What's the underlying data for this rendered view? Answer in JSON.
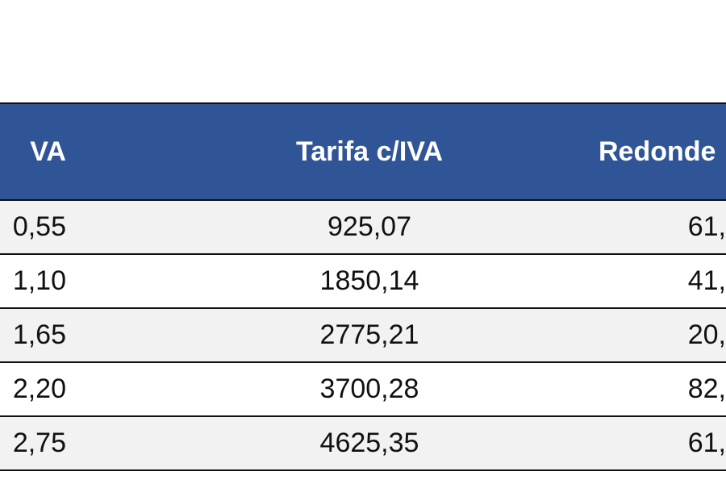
{
  "table": {
    "header": [
      "VA",
      "Tarifa c/IVA",
      "Redonde"
    ],
    "rows": [
      [
        "0,55",
        "925,07",
        "61,"
      ],
      [
        "1,10",
        "1850,14",
        "41,"
      ],
      [
        "1,65",
        "2775,21",
        "20,"
      ],
      [
        "2,20",
        "3700,28",
        "82,"
      ],
      [
        "2,75",
        "4625,35",
        "61,"
      ]
    ]
  }
}
